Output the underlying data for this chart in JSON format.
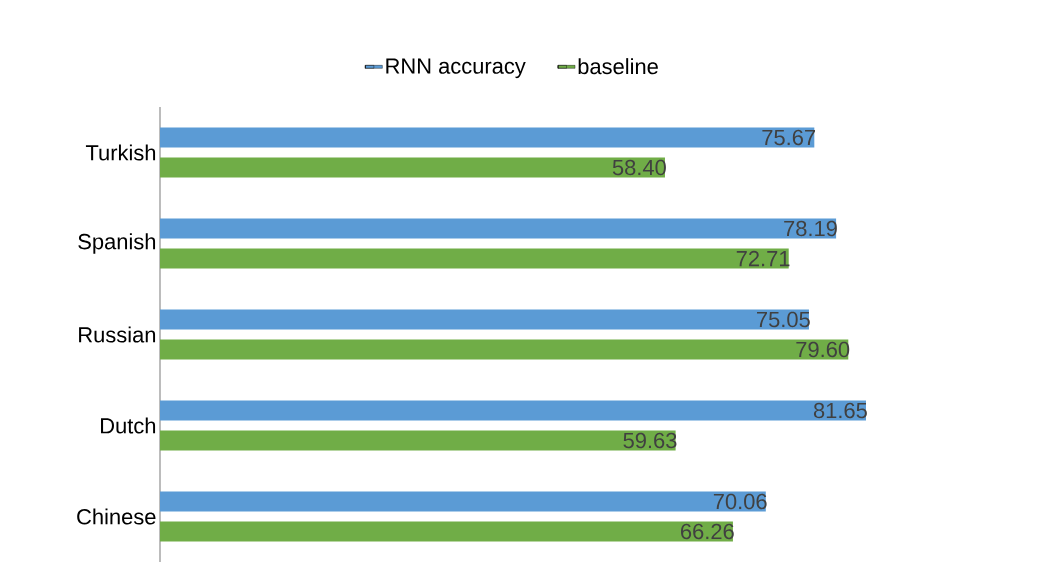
{
  "chart_data": {
    "type": "bar",
    "orientation": "horizontal",
    "categories": [
      "Turkish",
      "Spanish",
      "Russian",
      "Dutch",
      "Chinese"
    ],
    "tick_labels": "y",
    "legend": "top",
    "series": [
      {
        "name": "RNN accuracy",
        "color": "#5b9bd5",
        "values": [
          75.67,
          78.19,
          75.05,
          81.65,
          70.06
        ],
        "value_labels": [
          "75.67",
          "78.19",
          "75.05",
          "81.65",
          "70.06"
        ]
      },
      {
        "name": "baseline",
        "color": "#70ad47",
        "values": [
          58.4,
          72.71,
          79.6,
          59.63,
          66.26
        ],
        "value_labels": [
          "58.40",
          "72.71",
          "79.60",
          "59.63",
          "66.26"
        ]
      }
    ]
  }
}
